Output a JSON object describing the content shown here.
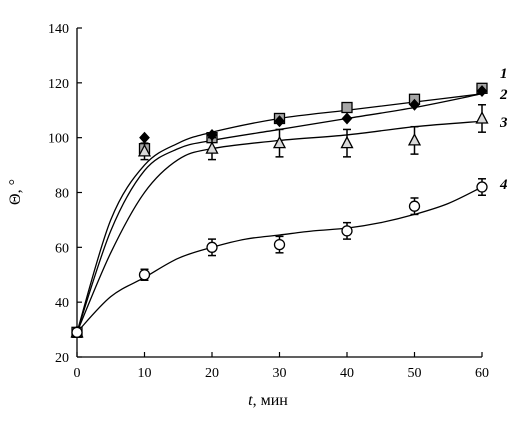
{
  "chart_data": {
    "type": "line",
    "xlabel_var": "t",
    "xlabel_unit": ", мин",
    "ylabel_var": "Θ",
    "ylabel_unit": ", °",
    "xlim": [
      0,
      60
    ],
    "ylim": [
      20,
      140
    ],
    "xticks": [
      0,
      10,
      20,
      30,
      40,
      50,
      60
    ],
    "yticks": [
      20,
      40,
      60,
      80,
      100,
      120,
      140
    ],
    "grid": false,
    "series": [
      {
        "label": "1",
        "marker": "square",
        "marker_fill": "#a6a6a6",
        "x": [
          0,
          10,
          20,
          30,
          40,
          50,
          60
        ],
        "y": [
          29,
          96,
          100,
          107,
          111,
          114,
          118
        ],
        "err": [
          0,
          0,
          0,
          0,
          0,
          0,
          0
        ],
        "fit": [
          [
            0,
            29
          ],
          [
            5,
            70
          ],
          [
            10,
            90
          ],
          [
            15,
            98
          ],
          [
            20,
            102
          ],
          [
            30,
            107
          ],
          [
            40,
            110
          ],
          [
            50,
            113
          ],
          [
            60,
            116
          ]
        ]
      },
      {
        "label": "2",
        "marker": "diamond",
        "marker_fill": "#000000",
        "x": [
          0,
          10,
          20,
          30,
          40,
          50,
          60
        ],
        "y": [
          29,
          100,
          101,
          106,
          107,
          112,
          117
        ],
        "err": [
          0,
          0,
          0,
          0,
          0,
          0,
          0
        ],
        "fit": [
          [
            0,
            29
          ],
          [
            5,
            66
          ],
          [
            10,
            88
          ],
          [
            15,
            96
          ],
          [
            20,
            99
          ],
          [
            30,
            103
          ],
          [
            40,
            107
          ],
          [
            50,
            111
          ],
          [
            60,
            116
          ]
        ]
      },
      {
        "label": "3",
        "marker": "triangle",
        "marker_fill": "#d9d9d9",
        "x": [
          0,
          10,
          20,
          30,
          40,
          50,
          60
        ],
        "y": [
          29,
          95,
          96,
          98,
          98,
          99,
          107
        ],
        "err": [
          0,
          3,
          4,
          5,
          5,
          5,
          5
        ],
        "fit": [
          [
            0,
            29
          ],
          [
            5,
            58
          ],
          [
            10,
            80
          ],
          [
            15,
            92
          ],
          [
            20,
            96
          ],
          [
            30,
            99
          ],
          [
            40,
            101
          ],
          [
            50,
            104
          ],
          [
            60,
            106
          ]
        ]
      },
      {
        "label": "4",
        "marker": "circle",
        "marker_fill": "#ffffff",
        "x": [
          0,
          10,
          20,
          30,
          40,
          50,
          60
        ],
        "y": [
          29,
          50,
          60,
          61,
          66,
          75,
          82
        ],
        "err": [
          0,
          2,
          3,
          3,
          3,
          3,
          3
        ],
        "fit": [
          [
            0,
            29
          ],
          [
            5,
            42
          ],
          [
            10,
            49
          ],
          [
            15,
            56
          ],
          [
            20,
            60
          ],
          [
            25,
            63
          ],
          [
            30,
            64.5
          ],
          [
            35,
            66
          ],
          [
            40,
            67
          ],
          [
            45,
            69
          ],
          [
            50,
            72
          ],
          [
            55,
            76
          ],
          [
            60,
            82
          ]
        ]
      }
    ]
  }
}
